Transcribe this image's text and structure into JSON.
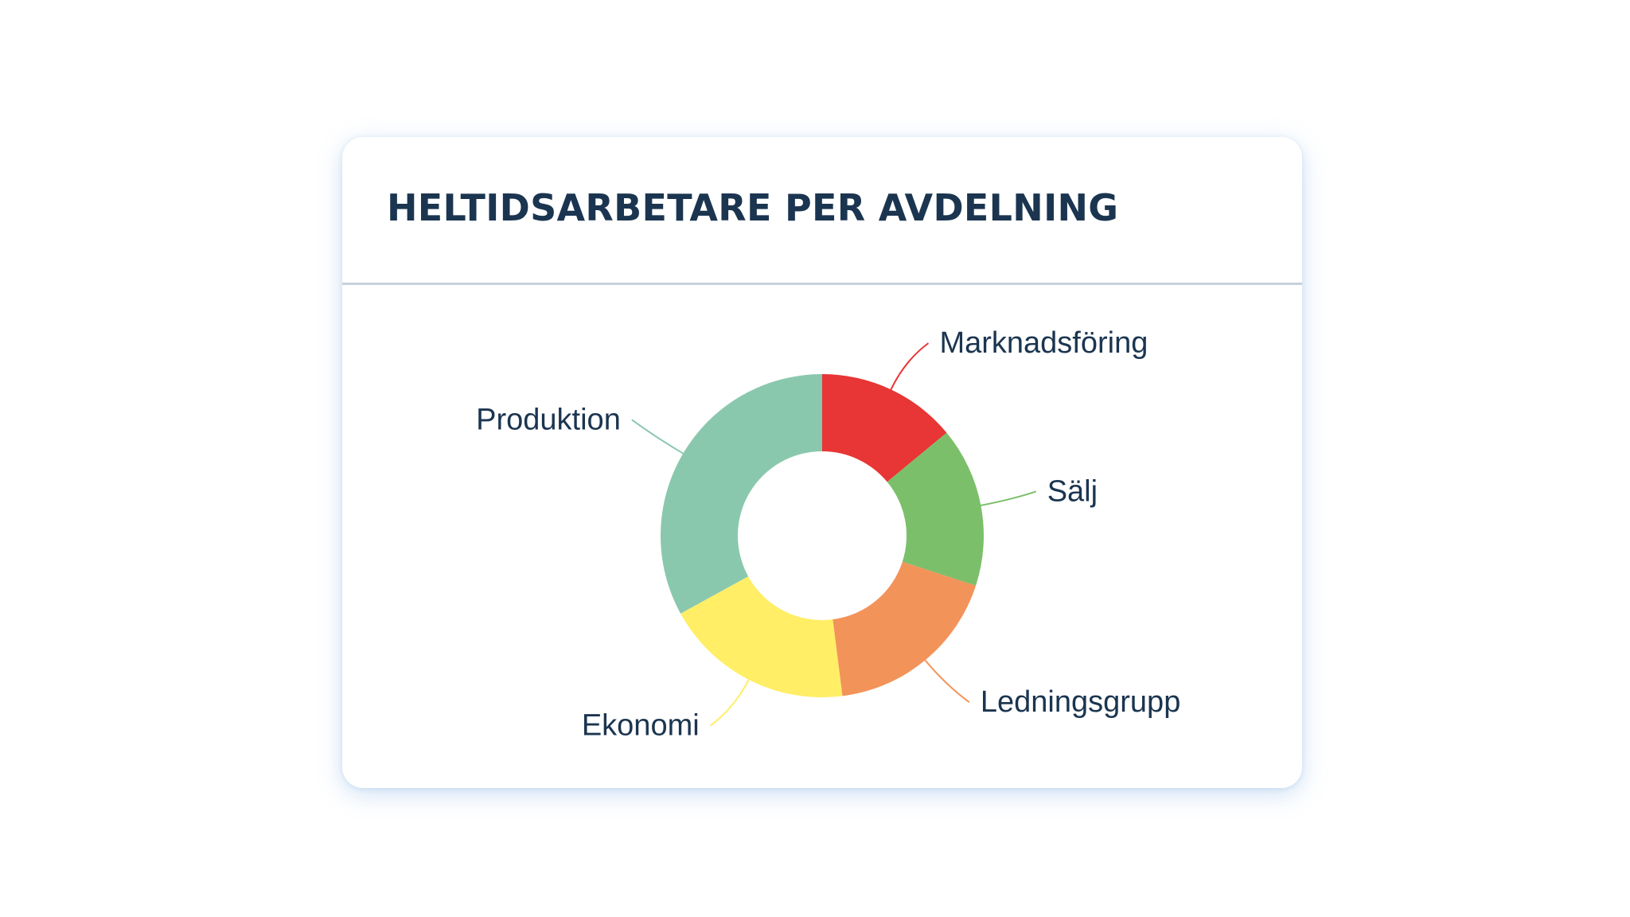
{
  "card": {
    "title": "HELTIDSARBETARE PER AVDELNING"
  },
  "chart_data": {
    "type": "pie",
    "variant": "donut",
    "title": "HELTIDSARBETARE PER AVDELNING",
    "legend": "none",
    "data_labels": "outside-with-leader-lines",
    "slices": [
      {
        "label": "Marknadsföring",
        "value": 14,
        "color": "#e83535"
      },
      {
        "label": "Sälj",
        "value": 16,
        "color": "#7bbf6a"
      },
      {
        "label": "Ledningsgrupp",
        "value": 18,
        "color": "#f2935a"
      },
      {
        "label": "Ekonomi",
        "value": 19,
        "color": "#ffee66"
      },
      {
        "label": "Produktion",
        "value": 33,
        "color": "#8ac8ae"
      }
    ]
  }
}
